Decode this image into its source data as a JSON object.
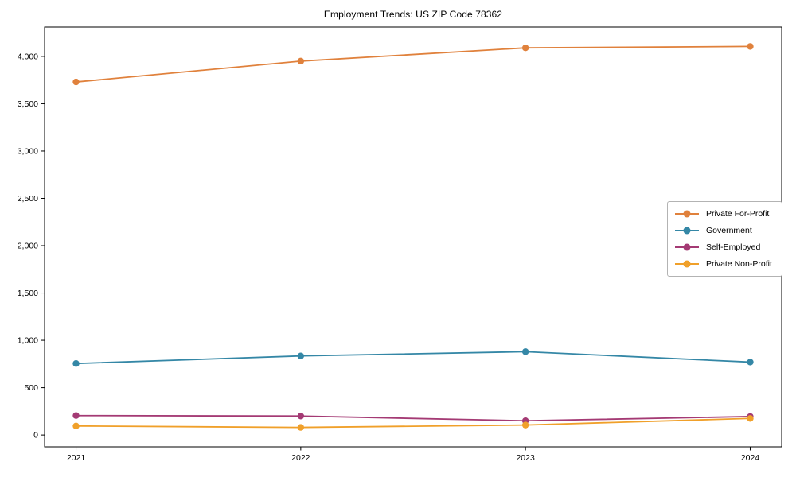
{
  "title": "Employment Trends: US ZIP Code 78362",
  "chart_data": {
    "type": "line",
    "title": "Employment Trends: US ZIP Code 78362",
    "xlabel": "",
    "ylabel": "",
    "categories": [
      "2021",
      "2022",
      "2023",
      "2024"
    ],
    "series": [
      {
        "name": "Private For-Profit",
        "color": "#e0813c",
        "values": [
          3730,
          3950,
          4090,
          4105
        ]
      },
      {
        "name": "Government",
        "color": "#3487a6",
        "values": [
          755,
          835,
          880,
          770
        ]
      },
      {
        "name": "Self-Employed",
        "color": "#a43a74",
        "values": [
          205,
          200,
          150,
          195
        ]
      },
      {
        "name": "Private Non-Profit",
        "color": "#f0a02a",
        "values": [
          95,
          80,
          105,
          175
        ]
      }
    ],
    "yticks": [
      0,
      500,
      1000,
      1500,
      2000,
      2500,
      3000,
      3500,
      4000
    ],
    "ytick_labels": [
      "0",
      "500",
      "1,000",
      "1,500",
      "2,000",
      "2,500",
      "3,000",
      "3,500",
      "4,000"
    ],
    "ylim": [
      -125,
      4310
    ],
    "xlim": [
      -0.14,
      3.14
    ],
    "grid": false,
    "legend_position": "center-right",
    "marker": "circle",
    "axis_color": "#000000",
    "legend_border_color": "#b3b3b3"
  }
}
